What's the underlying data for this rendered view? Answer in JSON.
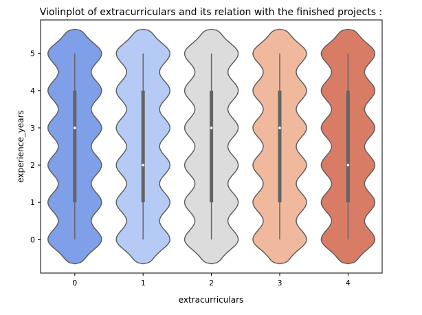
{
  "chart_data": {
    "type": "violin",
    "title": "Violinplot of extracurriculars and its relation with the finished projects :",
    "xlabel": "extracurriculars",
    "ylabel": "experience_years",
    "categories": [
      "0",
      "1",
      "2",
      "3",
      "4"
    ],
    "y_ticks": [
      "0",
      "1",
      "2",
      "3",
      "4",
      "5"
    ],
    "ylim": [
      -0.9,
      5.9
    ],
    "colors": [
      "#7f9fe9",
      "#b5cbf6",
      "#dcdcdc",
      "#f0b99d",
      "#d97c66"
    ],
    "box_color": "#646464",
    "violins": [
      {
        "category": "0",
        "min": 0,
        "q1": 1,
        "median": 3,
        "q3": 4,
        "max": 5,
        "kde_extent": [
          -0.65,
          5.65
        ]
      },
      {
        "category": "1",
        "min": 0,
        "q1": 1,
        "median": 2,
        "q3": 4,
        "max": 5,
        "kde_extent": [
          -0.65,
          5.65
        ]
      },
      {
        "category": "2",
        "min": 0,
        "q1": 1,
        "median": 3,
        "q3": 4,
        "max": 5,
        "kde_extent": [
          -0.65,
          5.65
        ]
      },
      {
        "category": "3",
        "min": 0,
        "q1": 1,
        "median": 3,
        "q3": 4,
        "max": 5,
        "kde_extent": [
          -0.65,
          5.65
        ]
      },
      {
        "category": "4",
        "min": 0,
        "q1": 1,
        "median": 2,
        "q3": 4,
        "max": 5,
        "kde_extent": [
          -0.65,
          5.65
        ]
      }
    ]
  }
}
